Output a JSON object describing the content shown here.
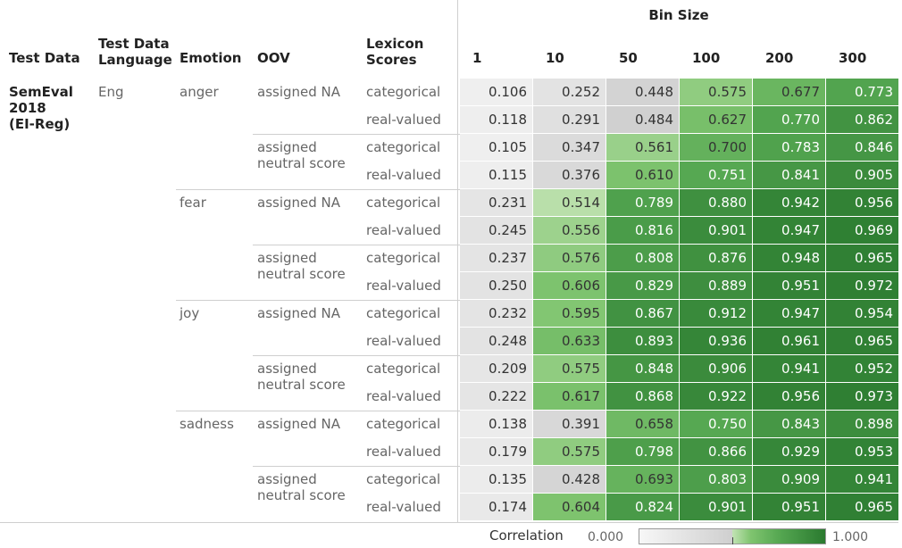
{
  "header": {
    "test_data": "Test Data",
    "test_data_language": "Test Data Language",
    "emotion": "Emotion",
    "oov": "OOV",
    "lexicon_scores": "Lexicon Scores",
    "bin_size": "Bin Size",
    "bins": [
      "1",
      "10",
      "50",
      "100",
      "200",
      "300"
    ]
  },
  "test_data": "SemEval 2018 (EI-Reg)",
  "language": "Eng",
  "emotions": [
    {
      "name": "anger",
      "oov": [
        {
          "name": "assigned NA",
          "rows": [
            {
              "lexicon": "categorical",
              "values": [
                "0.106",
                "0.252",
                "0.448",
                "0.575",
                "0.677",
                "0.773"
              ]
            },
            {
              "lexicon": "real-valued",
              "values": [
                "0.118",
                "0.291",
                "0.484",
                "0.627",
                "0.770",
                "0.862"
              ]
            }
          ]
        },
        {
          "name": "assigned neutral score",
          "rows": [
            {
              "lexicon": "categorical",
              "values": [
                "0.105",
                "0.347",
                "0.561",
                "0.700",
                "0.783",
                "0.846"
              ]
            },
            {
              "lexicon": "real-valued",
              "values": [
                "0.115",
                "0.376",
                "0.610",
                "0.751",
                "0.841",
                "0.905"
              ]
            }
          ]
        }
      ]
    },
    {
      "name": "fear",
      "oov": [
        {
          "name": "assigned NA",
          "rows": [
            {
              "lexicon": "categorical",
              "values": [
                "0.231",
                "0.514",
                "0.789",
                "0.880",
                "0.942",
                "0.956"
              ]
            },
            {
              "lexicon": "real-valued",
              "values": [
                "0.245",
                "0.556",
                "0.816",
                "0.901",
                "0.947",
                "0.969"
              ]
            }
          ]
        },
        {
          "name": "assigned neutral score",
          "rows": [
            {
              "lexicon": "categorical",
              "values": [
                "0.237",
                "0.576",
                "0.808",
                "0.876",
                "0.948",
                "0.965"
              ]
            },
            {
              "lexicon": "real-valued",
              "values": [
                "0.250",
                "0.606",
                "0.829",
                "0.889",
                "0.951",
                "0.972"
              ]
            }
          ]
        }
      ]
    },
    {
      "name": "joy",
      "oov": [
        {
          "name": "assigned NA",
          "rows": [
            {
              "lexicon": "categorical",
              "values": [
                "0.232",
                "0.595",
                "0.867",
                "0.912",
                "0.947",
                "0.954"
              ]
            },
            {
              "lexicon": "real-valued",
              "values": [
                "0.248",
                "0.633",
                "0.893",
                "0.936",
                "0.961",
                "0.965"
              ]
            }
          ]
        },
        {
          "name": "assigned neutral score",
          "rows": [
            {
              "lexicon": "categorical",
              "values": [
                "0.209",
                "0.575",
                "0.848",
                "0.906",
                "0.941",
                "0.952"
              ]
            },
            {
              "lexicon": "real-valued",
              "values": [
                "0.222",
                "0.617",
                "0.868",
                "0.922",
                "0.956",
                "0.973"
              ]
            }
          ]
        }
      ]
    },
    {
      "name": "sadness",
      "oov": [
        {
          "name": "assigned NA",
          "rows": [
            {
              "lexicon": "categorical",
              "values": [
                "0.138",
                "0.391",
                "0.658",
                "0.750",
                "0.843",
                "0.898"
              ]
            },
            {
              "lexicon": "real-valued",
              "values": [
                "0.179",
                "0.575",
                "0.798",
                "0.866",
                "0.929",
                "0.953"
              ]
            }
          ]
        },
        {
          "name": "assigned neutral score",
          "rows": [
            {
              "lexicon": "categorical",
              "values": [
                "0.135",
                "0.428",
                "0.693",
                "0.803",
                "0.909",
                "0.941"
              ]
            },
            {
              "lexicon": "real-valued",
              "values": [
                "0.174",
                "0.604",
                "0.824",
                "0.901",
                "0.951",
                "0.965"
              ]
            }
          ]
        }
      ]
    }
  ],
  "legend": {
    "title": "Correlation",
    "min": "0.000",
    "max": "1.000"
  }
}
